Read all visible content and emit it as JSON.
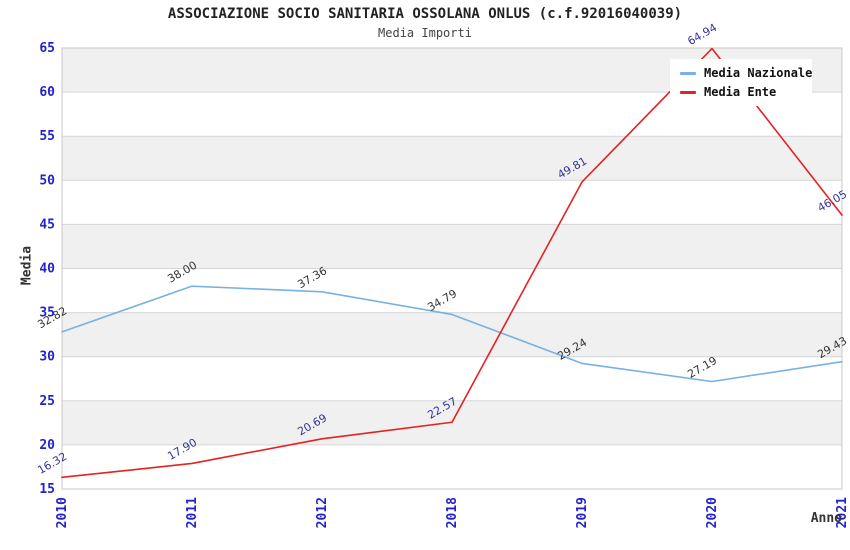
{
  "chart_data": {
    "type": "line",
    "title": "ASSOCIAZIONE SOCIO SANITARIA OSSOLANA ONLUS (c.f.92016040039)",
    "subtitle": "Media Importi",
    "xlabel": "Anno",
    "ylabel": "Media",
    "categories": [
      "2010",
      "2011",
      "2012",
      "2018",
      "2019",
      "2020",
      "2021"
    ],
    "series": [
      {
        "name": "Media Nazionale",
        "color": "#79b1e2",
        "label_color": "#333333",
        "values": [
          32.82,
          38.0,
          37.36,
          34.79,
          29.24,
          27.19,
          29.43
        ]
      },
      {
        "name": "Media Ente",
        "color": "#e42222",
        "label_color": "#333399",
        "values": [
          16.32,
          17.9,
          20.69,
          22.57,
          49.81,
          64.94,
          46.05
        ]
      }
    ],
    "ylim": [
      15,
      65
    ],
    "ytick_step": 5,
    "yticks": [
      15,
      20,
      25,
      30,
      35,
      40,
      45,
      50,
      55,
      60,
      65
    ],
    "grid": "horizontal-bands",
    "legend_position": "top-right",
    "colors": {
      "background": "#ffffff",
      "band_gray": "#f0f0f0",
      "band_white": "#ffffff",
      "grid_line": "#d6d6d6",
      "plot_border": "#c9c9c9",
      "tick_label": "#2323cc",
      "axis_title": "#333333",
      "title_text": "#222222",
      "subtitle_text": "#444444",
      "legend_text": "#111111",
      "legend_bg": "#ffffff"
    }
  }
}
